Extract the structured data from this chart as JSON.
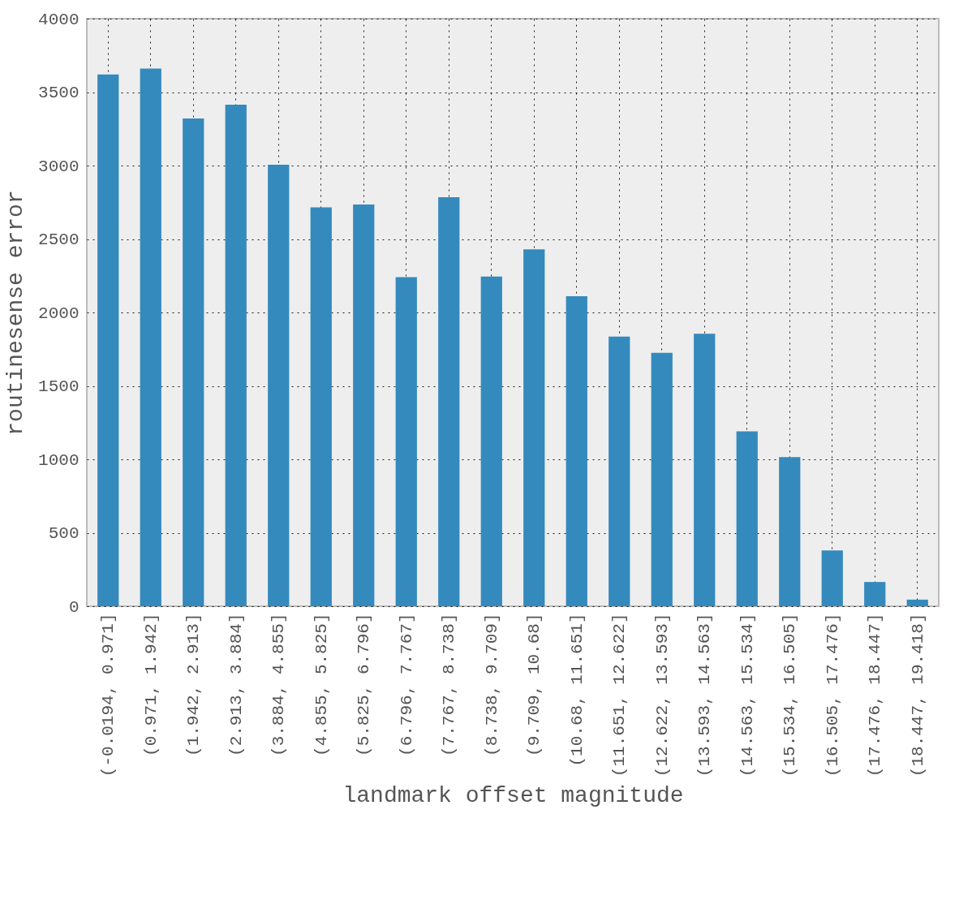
{
  "chart_data": {
    "type": "bar",
    "xlabel": "landmark offset magnitude",
    "ylabel": "routinesense error",
    "categories": [
      "(-0.0194, 0.971]",
      "(0.971, 1.942]",
      "(1.942, 2.913]",
      "(2.913, 3.884]",
      "(3.884, 4.855]",
      "(4.855, 5.825]",
      "(5.825, 6.796]",
      "(6.796, 7.767]",
      "(7.767, 8.738]",
      "(8.738, 9.709]",
      "(9.709, 10.68]",
      "(10.68, 11.651]",
      "(11.651, 12.622]",
      "(12.622, 13.593]",
      "(13.593, 14.563]",
      "(14.563, 15.534]",
      "(15.534, 16.505]",
      "(16.505, 17.476]",
      "(17.476, 18.447]",
      "(18.447, 19.418]"
    ],
    "values": [
      3620,
      3660,
      3320,
      3415,
      3005,
      2715,
      2735,
      2240,
      2785,
      2245,
      2430,
      2110,
      1835,
      1725,
      1855,
      1190,
      1015,
      380,
      165,
      45
    ],
    "color": "#348abd",
    "ylim": [
      0,
      4000
    ],
    "yticks": [
      0,
      500,
      1000,
      1500,
      2000,
      2500,
      3000,
      3500,
      4000
    ],
    "grid": true
  }
}
